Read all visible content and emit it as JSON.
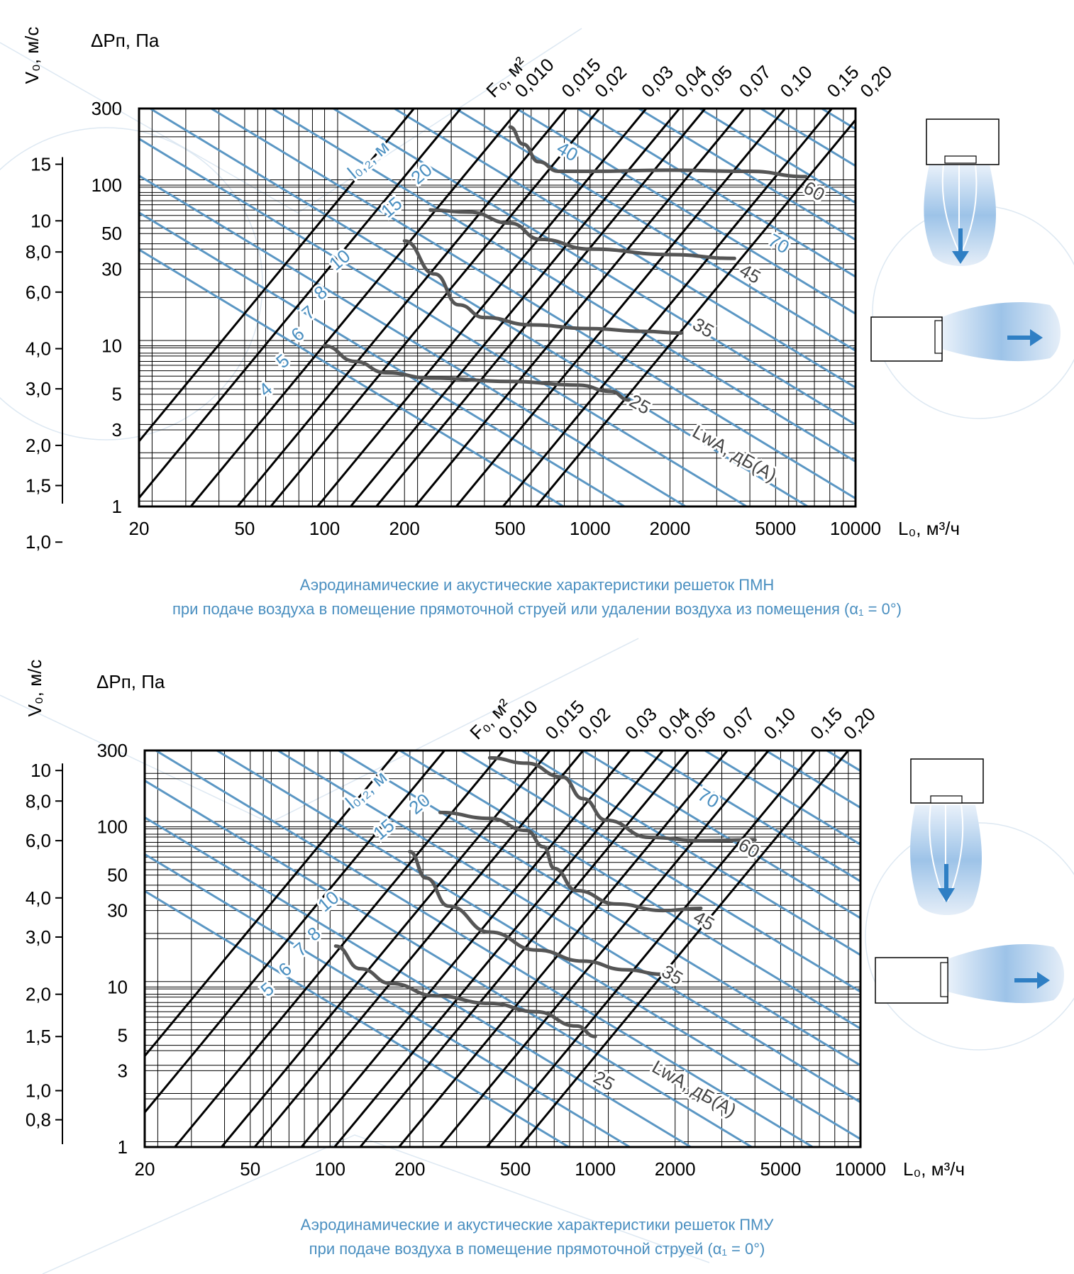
{
  "colors": {
    "grid": "#000000",
    "blue_lines": "#5b97c4",
    "blue_text": "#4a8fc0",
    "curves": "#555555",
    "icon_fill": "#2f7fc4",
    "background_pattern": "#dde8f2"
  },
  "chart_data": [
    {
      "type": "line",
      "chart_name": "PMN",
      "caption_line1": "Аэродинамические и акустические характеристики решеток ПМН",
      "caption_line2": "при подаче воздуха в помещение прямоточной струей или удалении воздуха из помещения (α₁ = 0°)",
      "xlabel": "L₀, м³/ч",
      "ylabel": "ΔPп, Па",
      "v_axis_label": "V₀, м/с",
      "x_scale": "log",
      "y_scale": "log",
      "xlim": [
        20,
        10000
      ],
      "ylim": [
        1,
        300
      ],
      "x_ticks": [
        20,
        50,
        100,
        200,
        500,
        1000,
        2000,
        5000,
        10000
      ],
      "y_ticks": [
        1,
        3,
        5,
        10,
        30,
        50,
        100,
        300
      ],
      "v_ticks": [
        {
          "label": "1,0",
          "dp": 0.6
        },
        {
          "label": "1,5",
          "dp": 1.35
        },
        {
          "label": "2,0",
          "dp": 2.4
        },
        {
          "label": "3,0",
          "dp": 5.4
        },
        {
          "label": "4,0",
          "dp": 9.6
        },
        {
          "label": "6,0",
          "dp": 21.6
        },
        {
          "label": "8,0",
          "dp": 38.4
        },
        {
          "label": "10",
          "dp": 60
        },
        {
          "label": "15",
          "dp": 135
        }
      ],
      "grid": true,
      "area_label": "F₀, м²",
      "area_lines": [
        {
          "label": "0,010",
          "value": 0.01
        },
        {
          "label": "0,015",
          "value": 0.015
        },
        {
          "label": "0,02",
          "value": 0.02
        },
        {
          "label": "0,03",
          "value": 0.03
        },
        {
          "label": "0,04",
          "value": 0.04
        },
        {
          "label": "0,05",
          "value": 0.05
        },
        {
          "label": "0,07",
          "value": 0.07
        },
        {
          "label": "0,10",
          "value": 0.1
        },
        {
          "label": "0,15",
          "value": 0.15
        },
        {
          "label": "0,20",
          "value": 0.2
        }
      ],
      "throw_label": "l₀,₂, м",
      "throw_lines": [
        {
          "label": "4",
          "anchor_L": 62,
          "anchor_dP": 5
        },
        {
          "label": "5",
          "anchor_L": 72,
          "anchor_dP": 7.5
        },
        {
          "label": "6",
          "anchor_L": 82,
          "anchor_dP": 11
        },
        {
          "label": "7",
          "anchor_L": 90,
          "anchor_dP": 15
        },
        {
          "label": "8",
          "anchor_L": 100,
          "anchor_dP": 20
        },
        {
          "label": "10",
          "anchor_L": 118,
          "anchor_dP": 32
        },
        {
          "label": "15",
          "anchor_L": 185,
          "anchor_dP": 68
        },
        {
          "label": "20",
          "anchor_L": 240,
          "anchor_dP": 110
        }
      ],
      "noise_label": "LwA, дБ(А)",
      "noise_lines": [
        {
          "label": "25",
          "anchor_L": 1500,
          "anchor_dP": 4
        },
        {
          "label": "35",
          "anchor_L": 2600,
          "anchor_dP": 12
        },
        {
          "label": "40",
          "anchor_L": 800,
          "anchor_dP": 150
        },
        {
          "label": "45",
          "anchor_L": 3900,
          "anchor_dP": 26
        },
        {
          "label": "60",
          "anchor_L": 6800,
          "anchor_dP": 85
        },
        {
          "label": "70",
          "anchor_L": 5000,
          "anchor_dP": 40
        }
      ],
      "series": [
        {
          "name": "25",
          "x": [
            100,
            130,
            170,
            250,
            500,
            900,
            1200,
            1400
          ],
          "y": [
            10,
            8,
            6.8,
            6.3,
            6,
            5.7,
            5.2,
            4.6
          ]
        },
        {
          "name": "35",
          "x": [
            200,
            260,
            320,
            400,
            600,
            1000,
            1600,
            2200
          ],
          "y": [
            45,
            28,
            18,
            15,
            13.5,
            12.8,
            12.3,
            12
          ]
        },
        {
          "name": "45",
          "x": [
            250,
            350,
            500,
            650,
            1000,
            2000,
            3500
          ],
          "y": [
            70,
            68,
            58,
            46,
            40,
            37,
            35
          ]
        },
        {
          "name": "60",
          "x": [
            500,
            560,
            640,
            760,
            1000,
            2000,
            4000,
            6500
          ],
          "y": [
            230,
            180,
            140,
            122,
            122,
            124,
            122,
            113
          ]
        }
      ]
    },
    {
      "type": "line",
      "chart_name": "PMU",
      "caption_line1": "Аэродинамические и акустические характеристики решеток ПМУ",
      "caption_line2": "при подаче воздуха в помещение прямоточной струей (α₁ = 0°)",
      "xlabel": "L₀, м³/ч",
      "ylabel": "ΔPп, Па",
      "v_axis_label": "V₀, м/с",
      "x_scale": "log",
      "y_scale": "log",
      "xlim": [
        20,
        10000
      ],
      "ylim": [
        1,
        300
      ],
      "x_ticks": [
        20,
        50,
        100,
        200,
        500,
        1000,
        2000,
        5000,
        10000
      ],
      "y_ticks": [
        1,
        3,
        5,
        10,
        30,
        50,
        100,
        300
      ],
      "v_ticks": [
        {
          "label": "0,8",
          "dp": 1.48
        },
        {
          "label": "1,0",
          "dp": 2.25
        },
        {
          "label": "1,5",
          "dp": 4.9
        },
        {
          "label": "2,0",
          "dp": 9.0
        },
        {
          "label": "3,0",
          "dp": 20.5
        },
        {
          "label": "4,0",
          "dp": 36
        },
        {
          "label": "6,0",
          "dp": 82
        },
        {
          "label": "8,0",
          "dp": 145
        },
        {
          "label": "10",
          "dp": 225
        }
      ],
      "grid": true,
      "area_label": "F₀, м²",
      "area_lines": [
        {
          "label": "0,010",
          "value": 0.01
        },
        {
          "label": "0,015",
          "value": 0.015
        },
        {
          "label": "0,02",
          "value": 0.02
        },
        {
          "label": "0,03",
          "value": 0.03
        },
        {
          "label": "0,04",
          "value": 0.04
        },
        {
          "label": "0,05",
          "value": 0.05
        },
        {
          "label": "0,07",
          "value": 0.07
        },
        {
          "label": "0,10",
          "value": 0.1
        },
        {
          "label": "0,15",
          "value": 0.15
        },
        {
          "label": "0,20",
          "value": 0.2
        }
      ],
      "throw_label": "l₀,₂, м",
      "throw_lines": [
        {
          "label": "5",
          "anchor_L": 60,
          "anchor_dP": 9
        },
        {
          "label": "6",
          "anchor_L": 70,
          "anchor_dP": 12
        },
        {
          "label": "7",
          "anchor_L": 80,
          "anchor_dP": 16
        },
        {
          "label": "8",
          "anchor_L": 90,
          "anchor_dP": 20
        },
        {
          "label": "10",
          "anchor_L": 102,
          "anchor_dP": 32
        },
        {
          "label": "15",
          "anchor_L": 165,
          "anchor_dP": 90
        },
        {
          "label": "20",
          "anchor_L": 225,
          "anchor_dP": 130
        }
      ],
      "noise_label": "LwA, дБ(А)",
      "noise_lines": [
        {
          "label": "25",
          "anchor_L": 1050,
          "anchor_dP": 2.4
        },
        {
          "label": "35",
          "anchor_L": 1900,
          "anchor_dP": 11
        },
        {
          "label": "45",
          "anchor_L": 2500,
          "anchor_dP": 24
        },
        {
          "label": "60",
          "anchor_L": 3700,
          "anchor_dP": 68
        },
        {
          "label": "70",
          "anchor_L": 2600,
          "anchor_dP": 140
        }
      ],
      "series": [
        {
          "name": "25",
          "x": [
            105,
            130,
            170,
            250,
            400,
            600,
            850,
            1000
          ],
          "y": [
            18,
            13,
            10.5,
            8.8,
            7.9,
            7,
            5.7,
            4.9
          ]
        },
        {
          "name": "35",
          "x": [
            200,
            230,
            280,
            400,
            600,
            900,
            1300,
            1800
          ],
          "y": [
            70,
            48,
            32,
            22,
            17,
            14.5,
            12.8,
            12
          ]
        },
        {
          "name": "45",
          "x": [
            260,
            400,
            550,
            640,
            700,
            850,
            1200,
            1800,
            2500
          ],
          "y": [
            123,
            113,
            95,
            75,
            55,
            40,
            33,
            30,
            31
          ]
        },
        {
          "name": "60",
          "x": [
            400,
            550,
            750,
            900,
            1100,
            1600,
            2500,
            4000
          ],
          "y": [
            270,
            250,
            205,
            150,
            110,
            86,
            82,
            83
          ]
        }
      ]
    }
  ]
}
